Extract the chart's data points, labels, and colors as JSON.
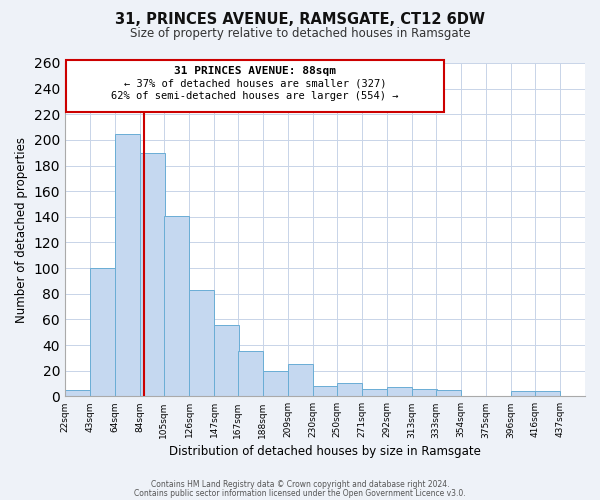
{
  "title": "31, PRINCES AVENUE, RAMSGATE, CT12 6DW",
  "subtitle": "Size of property relative to detached houses in Ramsgate",
  "xlabel": "Distribution of detached houses by size in Ramsgate",
  "ylabel": "Number of detached properties",
  "bar_left_edges": [
    22,
    43,
    64,
    85,
    105,
    126,
    147,
    167,
    188,
    209,
    230,
    250,
    271,
    292,
    313,
    333,
    354,
    375,
    396,
    416
  ],
  "bar_heights": [
    5,
    100,
    205,
    190,
    141,
    83,
    56,
    35,
    20,
    25,
    8,
    10,
    6,
    7,
    6,
    5,
    0,
    0,
    4,
    4
  ],
  "bar_color": "#c5d8f0",
  "bar_edge_color": "#6aadd5",
  "tick_labels": [
    "22sqm",
    "43sqm",
    "64sqm",
    "84sqm",
    "105sqm",
    "126sqm",
    "147sqm",
    "167sqm",
    "188sqm",
    "209sqm",
    "230sqm",
    "250sqm",
    "271sqm",
    "292sqm",
    "313sqm",
    "333sqm",
    "354sqm",
    "375sqm",
    "396sqm",
    "416sqm",
    "437sqm"
  ],
  "tick_positions": [
    22,
    43,
    64,
    85,
    105,
    126,
    147,
    167,
    188,
    209,
    230,
    250,
    271,
    292,
    313,
    333,
    354,
    375,
    396,
    416,
    437
  ],
  "marker_x": 88,
  "annotation_line1": "31 PRINCES AVENUE: 88sqm",
  "annotation_line2": "← 37% of detached houses are smaller (327)",
  "annotation_line3": "62% of semi-detached houses are larger (554) →",
  "annotation_box_color": "#ffffff",
  "annotation_box_edgecolor": "#cc0000",
  "marker_line_color": "#cc0000",
  "ylim": [
    0,
    260
  ],
  "xlim": [
    22,
    458
  ],
  "footer_line1": "Contains HM Land Registry data © Crown copyright and database right 2024.",
  "footer_line2": "Contains public sector information licensed under the Open Government Licence v3.0.",
  "bg_color": "#eef2f8",
  "plot_bg_color": "#ffffff",
  "grid_color": "#c8d4e8"
}
